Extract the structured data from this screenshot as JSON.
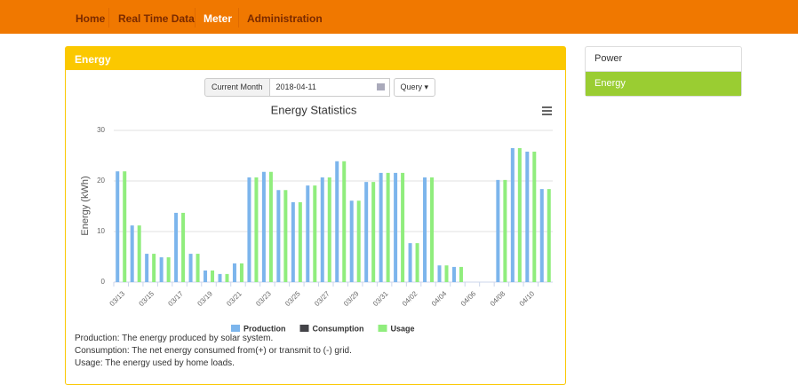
{
  "nav": {
    "items": [
      "Home",
      "Real Time Data",
      "Meter",
      "Administration"
    ],
    "active": 2
  },
  "panel": {
    "title": "Energy"
  },
  "side_menu": {
    "items": [
      "Power",
      "Energy"
    ],
    "active": 1
  },
  "controls": {
    "addon": "Current Month",
    "date": "2018-04-11",
    "button": "Query"
  },
  "chart_data": {
    "type": "bar",
    "title": "Energy Statistics",
    "y_label": "Energy (kWh)",
    "categories": [
      "03/13",
      null,
      "03/15",
      null,
      "03/17",
      null,
      "03/19",
      null,
      "03/21",
      null,
      "03/23",
      null,
      "03/25",
      null,
      "03/27",
      null,
      "03/29",
      null,
      "03/31",
      null,
      "04/02",
      null,
      "04/04",
      null,
      "04/06",
      null,
      "04/08",
      null,
      "04/10",
      null
    ],
    "series": [
      {
        "name": "Production",
        "color": "#7cb5ec",
        "values": [
          21.9,
          11.2,
          5.6,
          4.9,
          13.7,
          5.6,
          2.3,
          1.6,
          3.7,
          20.7,
          21.8,
          18.2,
          15.8,
          19.1,
          20.7,
          23.9,
          16.1,
          19.8,
          21.6,
          21.6,
          7.7,
          20.7,
          3.3,
          3.0,
          0,
          0,
          20.2,
          26.5,
          25.8,
          18.4
        ]
      },
      {
        "name": "Consumption",
        "color": "#434348",
        "values": [
          0,
          0,
          0,
          0,
          0,
          0,
          0,
          0,
          0,
          0,
          0,
          0,
          0,
          0,
          0,
          0,
          0,
          0,
          0,
          0,
          0,
          0,
          0,
          0,
          0,
          0,
          0,
          0,
          0,
          0
        ]
      },
      {
        "name": "Usage",
        "color": "#90ed7d",
        "values": [
          21.9,
          11.2,
          5.6,
          4.9,
          13.7,
          5.6,
          2.3,
          1.6,
          3.7,
          20.7,
          21.8,
          18.2,
          15.8,
          19.1,
          20.7,
          23.9,
          16.1,
          19.8,
          21.6,
          21.6,
          7.7,
          20.7,
          3.3,
          3.0,
          0,
          0,
          20.2,
          26.5,
          25.8,
          18.4
        ]
      }
    ],
    "ylim": [
      0,
      30
    ],
    "yticks": [
      0,
      10,
      20,
      30
    ],
    "grid": true,
    "legend": "bottom"
  },
  "notes": [
    "Production: The energy produced by solar system.",
    "Consumption: The net energy consumed from(+) or transmit to (-) grid.",
    "Usage: The energy used by home loads."
  ]
}
